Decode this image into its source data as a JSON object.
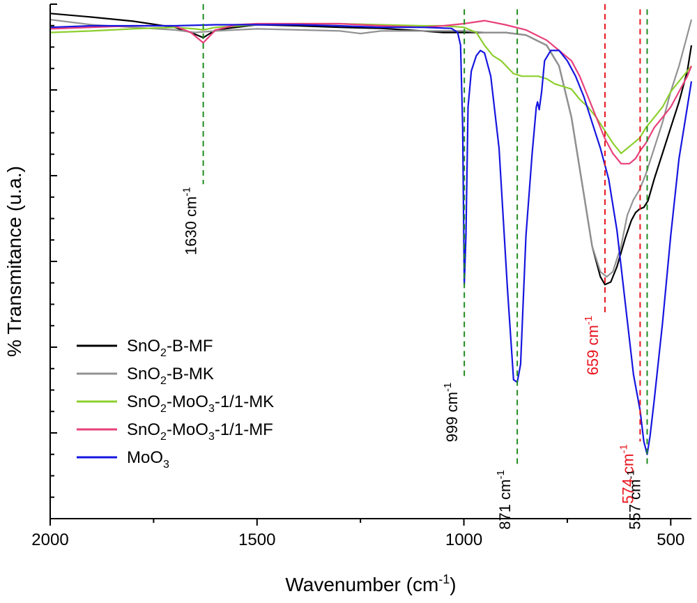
{
  "chart_data": {
    "type": "line",
    "xlabel_main": "Wavenumber (cm",
    "xlabel_sup": "-1",
    "xlabel_end": ")",
    "ylabel": "% Transmitance (u.a.)",
    "xlim": [
      2000,
      450
    ],
    "ylim": [
      0,
      1
    ],
    "x_reversed": true,
    "xticks": [
      2000,
      1500,
      1000,
      500
    ],
    "xtick_labels": [
      "2000",
      "1500",
      "1000",
      "500"
    ],
    "grid": false,
    "legend_position": "lower-left",
    "series": [
      {
        "label_base": "SnO",
        "label_sub": "2",
        "label_rest": "-B-MF",
        "label_sub2": "",
        "label_end": "",
        "color": "#000000",
        "x": [
          2000,
          1900,
          1800,
          1700,
          1660,
          1630,
          1600,
          1550,
          1500,
          1400,
          1300,
          1200,
          1100,
          1050,
          1000,
          950,
          900,
          850,
          800,
          770,
          740,
          710,
          690,
          670,
          659,
          645,
          630,
          610,
          595,
          585,
          575,
          565,
          555,
          540,
          520,
          500,
          480,
          460,
          450
        ],
        "y": [
          0.982,
          0.975,
          0.967,
          0.955,
          0.945,
          0.935,
          0.95,
          0.955,
          0.96,
          0.958,
          0.955,
          0.953,
          0.948,
          0.945,
          0.945,
          0.945,
          0.945,
          0.94,
          0.92,
          0.88,
          0.78,
          0.63,
          0.53,
          0.47,
          0.455,
          0.46,
          0.49,
          0.545,
          0.58,
          0.595,
          0.602,
          0.605,
          0.618,
          0.66,
          0.71,
          0.76,
          0.81,
          0.87,
          0.92
        ]
      },
      {
        "label_base": "SnO",
        "label_sub": "2",
        "label_rest": "-B-MK",
        "label_sub2": "",
        "label_end": "",
        "color": "#929292",
        "x": [
          2000,
          1900,
          1800,
          1700,
          1650,
          1600,
          1550,
          1500,
          1400,
          1300,
          1250,
          1200,
          1100,
          1000,
          950,
          900,
          850,
          800,
          770,
          740,
          710,
          690,
          670,
          655,
          640,
          620,
          605,
          590,
          575,
          560,
          540,
          520,
          500,
          480,
          460,
          450
        ],
        "y": [
          0.97,
          0.96,
          0.955,
          0.95,
          0.945,
          0.948,
          0.95,
          0.952,
          0.95,
          0.948,
          0.943,
          0.948,
          0.948,
          0.948,
          0.945,
          0.945,
          0.94,
          0.92,
          0.88,
          0.78,
          0.63,
          0.53,
          0.48,
          0.47,
          0.48,
          0.53,
          0.59,
          0.62,
          0.64,
          0.67,
          0.72,
          0.77,
          0.83,
          0.88,
          0.94,
          0.97
        ]
      },
      {
        "label_base": "SnO",
        "label_sub": "2",
        "label_rest": "-MoO",
        "label_sub2": "3",
        "label_end": "-1/1-MK",
        "color": "#8ccf2e",
        "x": [
          2000,
          1900,
          1800,
          1700,
          1650,
          1630,
          1600,
          1500,
          1400,
          1300,
          1200,
          1100,
          1050,
          1000,
          970,
          950,
          930,
          910,
          880,
          860,
          840,
          820,
          800,
          780,
          760,
          740,
          720,
          700,
          680,
          660,
          640,
          620,
          605,
          590,
          575,
          560,
          540,
          520,
          500,
          480,
          460,
          450
        ],
        "y": [
          0.945,
          0.948,
          0.952,
          0.955,
          0.952,
          0.95,
          0.955,
          0.96,
          0.962,
          0.962,
          0.96,
          0.958,
          0.958,
          0.955,
          0.945,
          0.92,
          0.9,
          0.89,
          0.865,
          0.86,
          0.86,
          0.86,
          0.855,
          0.845,
          0.84,
          0.835,
          0.815,
          0.8,
          0.78,
          0.755,
          0.73,
          0.71,
          0.72,
          0.73,
          0.74,
          0.76,
          0.78,
          0.8,
          0.83,
          0.85,
          0.87,
          0.88
        ]
      },
      {
        "label_base": "SnO",
        "label_sub": "2",
        "label_rest": "-MoO",
        "label_sub2": "3",
        "label_end": "-1/1-MF",
        "color": "#e8407a",
        "x": [
          2000,
          1900,
          1800,
          1700,
          1660,
          1630,
          1600,
          1550,
          1500,
          1400,
          1300,
          1200,
          1100,
          1050,
          1000,
          950,
          900,
          850,
          800,
          770,
          740,
          720,
          700,
          680,
          660,
          640,
          620,
          600,
          585,
          574,
          560,
          540,
          520,
          500,
          480,
          460,
          450
        ],
        "y": [
          0.952,
          0.955,
          0.958,
          0.958,
          0.945,
          0.925,
          0.95,
          0.96,
          0.962,
          0.962,
          0.962,
          0.958,
          0.955,
          0.958,
          0.962,
          0.968,
          0.96,
          0.95,
          0.93,
          0.91,
          0.89,
          0.86,
          0.82,
          0.78,
          0.74,
          0.71,
          0.69,
          0.69,
          0.7,
          0.715,
          0.73,
          0.76,
          0.78,
          0.8,
          0.83,
          0.86,
          0.88
        ]
      },
      {
        "label_base": "MoO",
        "label_sub": "3",
        "label_rest": "",
        "label_sub2": "",
        "label_end": "",
        "color": "#1515e0",
        "x": [
          2000,
          1900,
          1800,
          1700,
          1600,
          1500,
          1400,
          1300,
          1200,
          1100,
          1030,
          1015,
          1008,
          1003,
          999,
          995,
          990,
          982,
          970,
          960,
          950,
          935,
          915,
          895,
          880,
          871,
          863,
          850,
          835,
          825,
          822,
          818,
          812,
          805,
          790,
          770,
          750,
          730,
          710,
          690,
          670,
          650,
          630,
          610,
          590,
          574,
          565,
          557,
          550,
          540,
          520,
          500,
          480,
          460,
          450
        ],
        "y": [
          0.955,
          0.958,
          0.958,
          0.958,
          0.96,
          0.96,
          0.96,
          0.958,
          0.955,
          0.955,
          0.953,
          0.945,
          0.92,
          0.76,
          0.455,
          0.55,
          0.8,
          0.87,
          0.9,
          0.91,
          0.905,
          0.86,
          0.72,
          0.45,
          0.27,
          0.265,
          0.3,
          0.55,
          0.71,
          0.8,
          0.81,
          0.795,
          0.83,
          0.89,
          0.91,
          0.91,
          0.89,
          0.86,
          0.82,
          0.77,
          0.72,
          0.66,
          0.56,
          0.42,
          0.28,
          0.21,
          0.15,
          0.125,
          0.16,
          0.23,
          0.38,
          0.55,
          0.7,
          0.8,
          0.85
        ]
      }
    ],
    "annotations": [
      {
        "x": 1630,
        "label": "1630 cm",
        "sup": "-1",
        "color": "green",
        "y_top": 1.0,
        "y_bottom": 0.65
      },
      {
        "x": 999,
        "label": "999 cm",
        "sup": "-1",
        "color": "green",
        "y_top": 0.99,
        "y_bottom": 0.27
      },
      {
        "x": 871,
        "label": "871 cm",
        "sup": "-1",
        "color": "green",
        "y_top": 0.99,
        "y_bottom": 0.1
      },
      {
        "x": 659,
        "label": "659 cm",
        "sup": "-1",
        "color": "red",
        "y_top": 1.0,
        "y_bottom": 0.4
      },
      {
        "x": 574,
        "label": "574 cm",
        "sup": "-1",
        "color": "red",
        "y_top": 0.99,
        "y_bottom": 0.15
      },
      {
        "x": 557,
        "label": "557 cm",
        "sup": "-1",
        "color": "green",
        "y_top": 0.99,
        "y_bottom": 0.1
      }
    ],
    "annotation_colors": {
      "green": "#1e8c1e",
      "red": "#e8141e"
    }
  }
}
